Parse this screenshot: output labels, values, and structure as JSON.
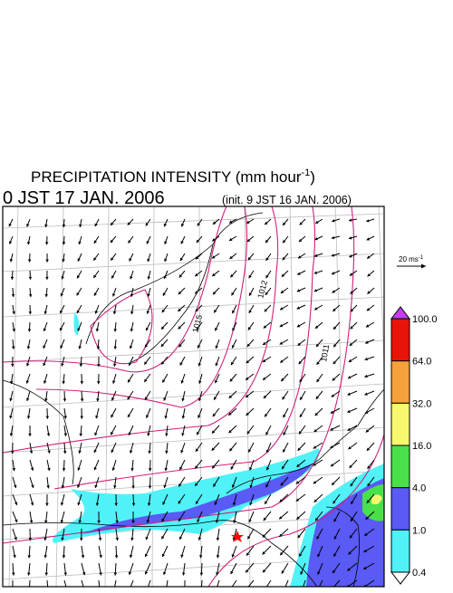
{
  "header": {
    "title_main": "PRECIPITATION INTENSITY (mm hour",
    "title_exponent": "-1",
    "title_end": ")",
    "valid_time": "0 JST 17 JAN. 2006",
    "init_time": "(init. 9 JST 16 JAN. 2006)"
  },
  "wind_reference": {
    "label": "20 ms",
    "exponent": "-1"
  },
  "isobar_labels": [
    "1015",
    "1012",
    "1011"
  ],
  "colorbar": {
    "levels": [
      {
        "value": 100,
        "label": "100.0"
      },
      {
        "value": 64,
        "label": "64.0"
      },
      {
        "value": 32,
        "label": "32.0"
      },
      {
        "value": 16,
        "label": "16.0"
      },
      {
        "value": 4,
        "label": "4.0"
      },
      {
        "value": 1,
        "label": "1.0"
      },
      {
        "value": 0.4,
        "label": "0.4"
      }
    ],
    "colors": [
      "#c040f0",
      "#e8140a",
      "#f5a23c",
      "#f8f870",
      "#4ae04a",
      "#5a5af5",
      "#50f2f8",
      "#ffffff"
    ]
  }
}
